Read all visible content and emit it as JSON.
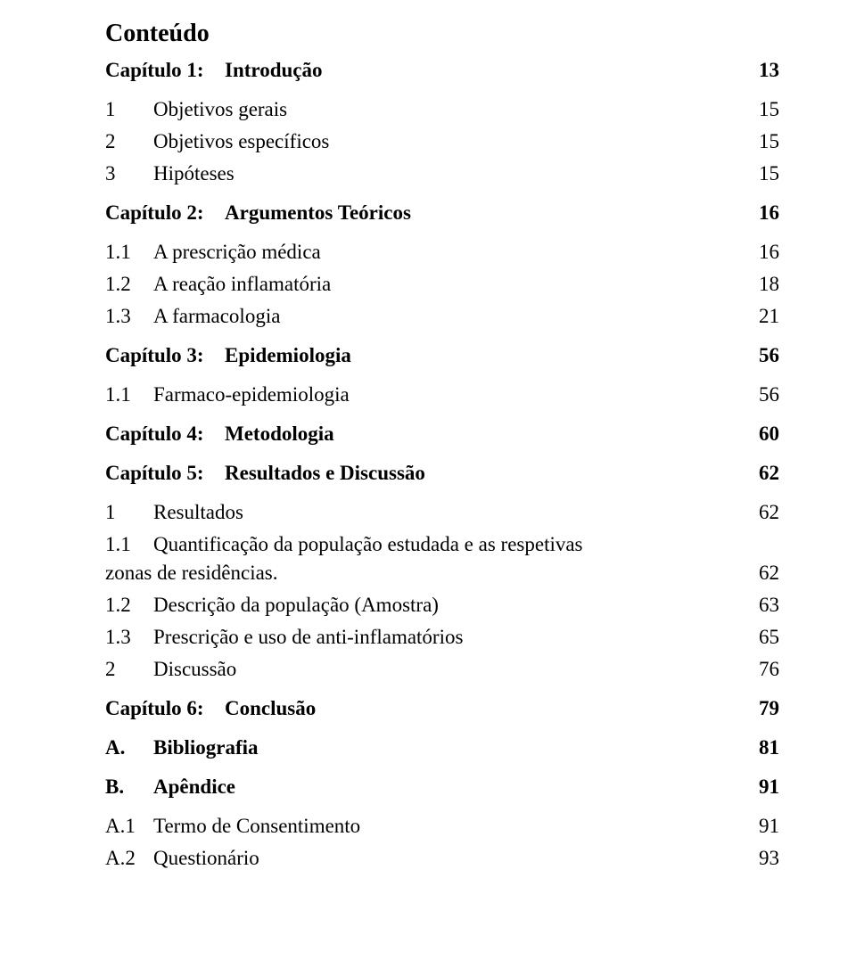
{
  "title": "Conteúdo",
  "rows": [
    {
      "kind": "chapter",
      "label": "Capítulo 1:",
      "title": "Introdução",
      "page": "13"
    },
    {
      "kind": "spacer"
    },
    {
      "kind": "n1",
      "label": "1",
      "title": "Objetivos gerais",
      "page": "15"
    },
    {
      "kind": "spacer-sm"
    },
    {
      "kind": "n1",
      "label": "2",
      "title": "Objetivos específicos",
      "page": "15"
    },
    {
      "kind": "spacer-sm"
    },
    {
      "kind": "n1",
      "label": "3",
      "title": "Hipóteses",
      "page": "15"
    },
    {
      "kind": "spacer"
    },
    {
      "kind": "chapter",
      "label": "Capítulo 2:",
      "title": "Argumentos Teóricos",
      "page": "16"
    },
    {
      "kind": "spacer"
    },
    {
      "kind": "n2",
      "label": "1.1",
      "title": "A prescrição médica",
      "page": "16"
    },
    {
      "kind": "spacer-sm"
    },
    {
      "kind": "n2",
      "label": "1.2",
      "title": "A reação inflamatória",
      "page": "18"
    },
    {
      "kind": "spacer-sm"
    },
    {
      "kind": "n2",
      "label": "1.3",
      "title": "A farmacologia",
      "page": "21"
    },
    {
      "kind": "spacer"
    },
    {
      "kind": "chapter",
      "label": "Capítulo 3:",
      "title": "Epidemiologia",
      "page": "56"
    },
    {
      "kind": "spacer"
    },
    {
      "kind": "n2",
      "label": "1.1",
      "title": "Farmaco-epidemiologia",
      "page": "56"
    },
    {
      "kind": "spacer"
    },
    {
      "kind": "chapter",
      "label": "Capítulo 4:",
      "title": "Metodologia",
      "page": "60"
    },
    {
      "kind": "spacer"
    },
    {
      "kind": "chapter",
      "label": "Capítulo 5:",
      "title": "Resultados e Discussão",
      "page": "62"
    },
    {
      "kind": "spacer"
    },
    {
      "kind": "n1",
      "label": "1",
      "title": "Resultados",
      "page": "62"
    },
    {
      "kind": "spacer-sm"
    },
    {
      "kind": "n2-wrap",
      "label": "1.1",
      "title": "Quantificação da população estudada e as respetivas zonas de residências.",
      "page": "62"
    },
    {
      "kind": "spacer-sm"
    },
    {
      "kind": "n2",
      "label": "1.2",
      "title": "Descrição da população (Amostra)",
      "page": "63"
    },
    {
      "kind": "spacer-sm"
    },
    {
      "kind": "n2",
      "label": "1.3",
      "title": "Prescrição e uso de anti-inflamatórios",
      "page": "65"
    },
    {
      "kind": "spacer-sm"
    },
    {
      "kind": "n1",
      "label": "2",
      "title": "Discussão",
      "page": "76"
    },
    {
      "kind": "spacer"
    },
    {
      "kind": "chapter",
      "label": "Capítulo 6:",
      "title": "Conclusão",
      "page": "79"
    },
    {
      "kind": "spacer"
    },
    {
      "kind": "chapter",
      "label": "A.",
      "title": "Bibliografia",
      "page": "81",
      "short": true
    },
    {
      "kind": "spacer"
    },
    {
      "kind": "chapter",
      "label": "B.",
      "title": "Apêndice",
      "page": "91",
      "short": true
    },
    {
      "kind": "spacer"
    },
    {
      "kind": "n2",
      "label": "A.1",
      "title": "Termo de Consentimento",
      "page": "91"
    },
    {
      "kind": "spacer-sm"
    },
    {
      "kind": "n2",
      "label": "A.2",
      "title": "Questionário",
      "page": "93"
    }
  ]
}
